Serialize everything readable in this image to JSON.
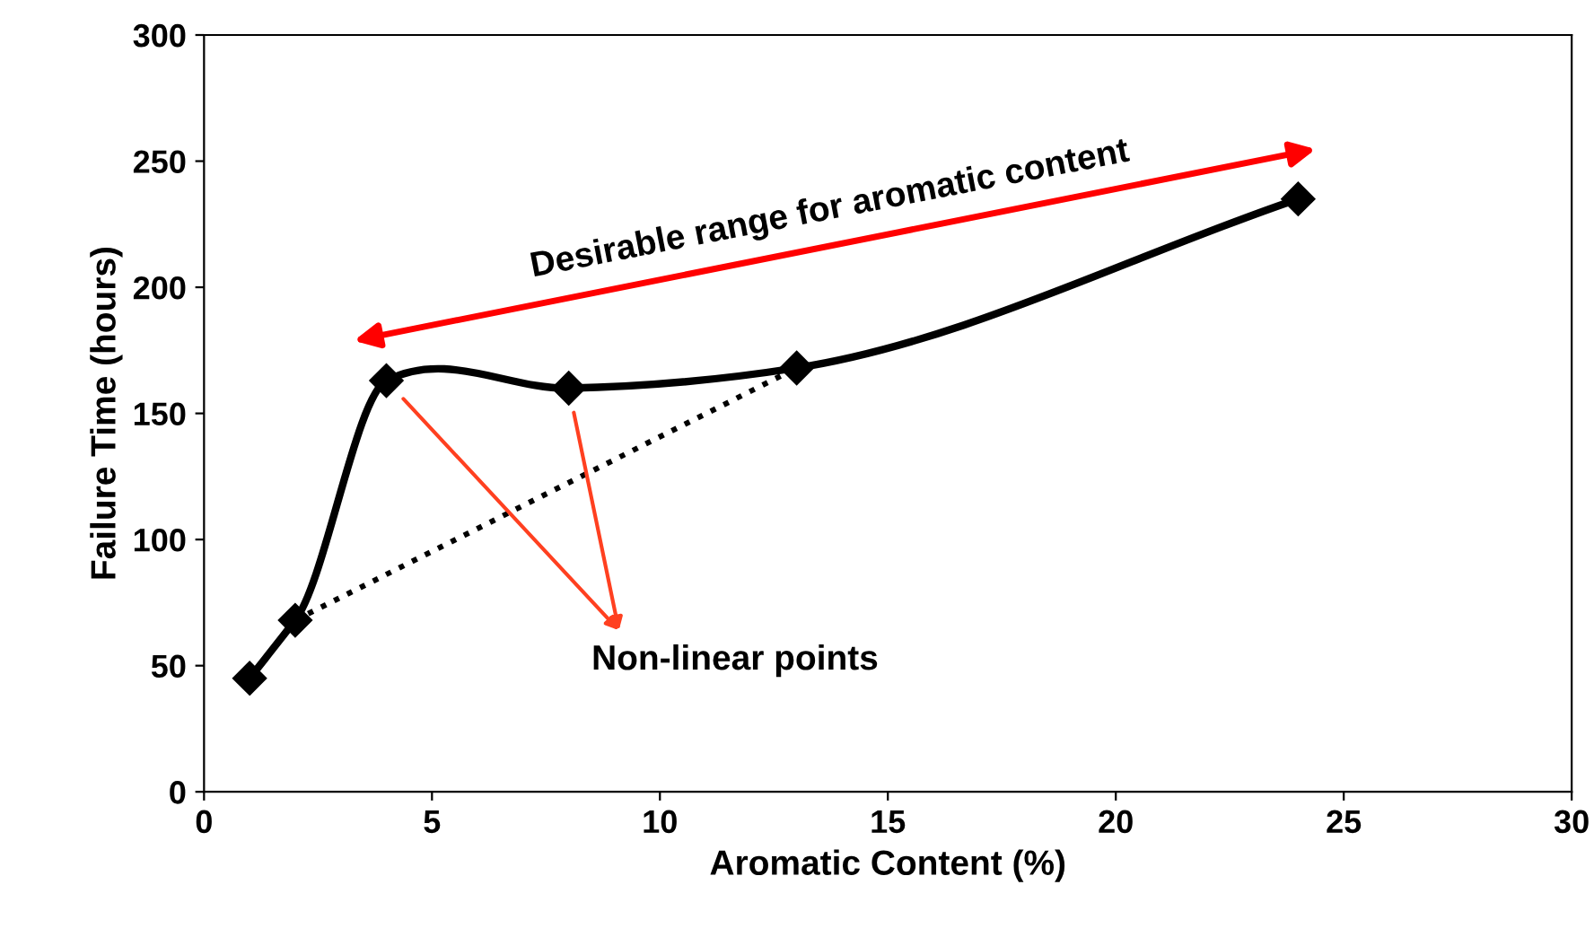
{
  "chart_data": {
    "type": "line",
    "xlabel": "Aromatic Content (%)",
    "ylabel": "Failure Time (hours)",
    "series": [
      {
        "color": "#000000",
        "x": [
          1,
          2,
          4,
          8,
          13,
          24
        ],
        "values": [
          45,
          68,
          163,
          160,
          168,
          235
        ],
        "marker": "diamond",
        "line_style": "solid"
      },
      {
        "color": "#000000",
        "x": [
          2,
          13
        ],
        "values": [
          68,
          168
        ],
        "marker": "none",
        "line_style": "dotted"
      }
    ],
    "annotations": [
      "Desirable range for aromatic content",
      "Non-linear points"
    ],
    "xlim": [
      0,
      30
    ],
    "xticks": [
      0,
      5,
      10,
      15,
      20,
      25,
      30
    ],
    "ylim": [
      0,
      300
    ],
    "yticks": [
      0,
      50,
      100,
      150,
      200,
      250,
      300
    ],
    "grid": false,
    "legend": false
  }
}
